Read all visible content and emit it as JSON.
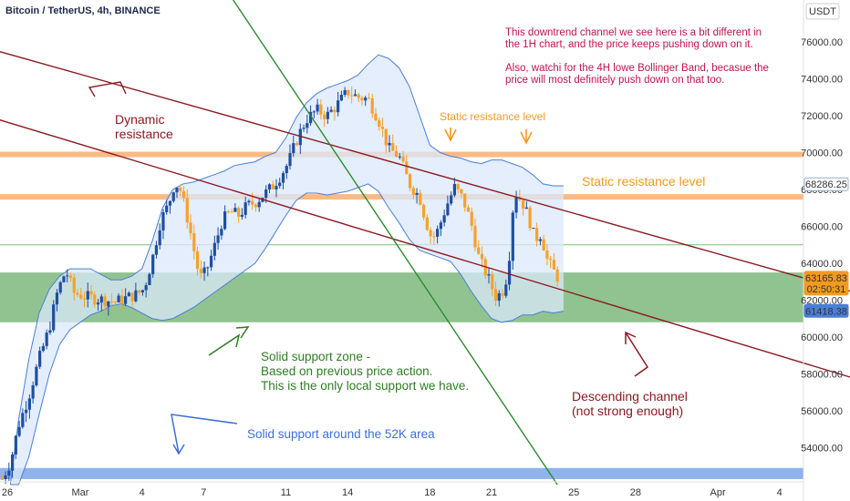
{
  "header": {
    "symbol_title": "Bitcoin / TetherUS, 4h, BINANCE",
    "currency": "USDT"
  },
  "colors": {
    "up": "#1e4fa0",
    "down": "#f7a12a",
    "support_zone": "#7cb87c",
    "support_52k": "#7aa6ea",
    "static_resistance": "#f7b27a",
    "bollinger": "#4a7fd8",
    "bollinger_fill": "#dbe8fb",
    "dark_red": "#8b1a22",
    "green_line": "#2e8b2e",
    "annotation_red": "#c0144c",
    "annotation_orange": "#f39a1f",
    "annotation_green": "#2e7d23",
    "annotation_blue": "#3d6fd8",
    "badge_orange": "#f39a1f",
    "badge_blue": "#4a7fd8"
  },
  "chart_data": {
    "type": "candlestick",
    "title": "Bitcoin / TetherUS, 4h, BINANCE",
    "y_axis": {
      "ticks": [
        "76000.00",
        "74000.00",
        "72000.00",
        "70000.00",
        "68000.00",
        "66000.00",
        "64000.00",
        "62000.00",
        "60000.00",
        "58000.00",
        "56000.00",
        "54000.00"
      ],
      "tick_values": [
        76000,
        74000,
        72000,
        70000,
        68000,
        66000,
        64000,
        62000,
        60000,
        58000,
        56000,
        54000
      ],
      "range": [
        52000,
        77000
      ],
      "unit": "USDT"
    },
    "x_axis": {
      "ticks": [
        "26",
        "Mar",
        "4",
        "7",
        "11",
        "14",
        "18",
        "21",
        "25",
        "28",
        "Apr",
        "4"
      ],
      "tick_days": [
        -4,
        0,
        3,
        6,
        10,
        13,
        17,
        20,
        24,
        27,
        31,
        34
      ]
    },
    "price_labels": [
      {
        "value": 68286.25,
        "text": "68286.25",
        "style": "outline"
      },
      {
        "value": 63165.83,
        "text": "63165.83",
        "sub": "02:50:31",
        "style": "orange"
      },
      {
        "value": 61418.38,
        "text": "61418.38",
        "style": "blue"
      }
    ],
    "levels": {
      "static_resistance": [
        69900,
        67600
      ],
      "support_zone": [
        60800,
        63500
      ],
      "support_52k": [
        52300,
        52900
      ],
      "thin_line": 65000
    },
    "trendlines": [
      {
        "name": "dynamic_resistance",
        "from": {
          "day": -4,
          "price": 75500
        },
        "to": {
          "day": 39,
          "price": 62000
        }
      },
      {
        "name": "channel_lower",
        "from": {
          "day": -4,
          "price": 71800
        },
        "to": {
          "day": 39,
          "price": 57300
        }
      },
      {
        "name": "steep_green",
        "from": {
          "day": 4.6,
          "price": 83000
        },
        "to": {
          "day": 23.2,
          "price": 52000
        }
      }
    ],
    "bollinger": {
      "upper": [
        [
          -3.4,
          52000
        ],
        [
          -3,
          55500
        ],
        [
          -2.5,
          58800
        ],
        [
          -2,
          61300
        ],
        [
          -1.5,
          62600
        ],
        [
          -1,
          63300
        ],
        [
          -0.5,
          63700
        ],
        [
          0,
          63700
        ],
        [
          0.5,
          63700
        ],
        [
          1,
          63400
        ],
        [
          1.5,
          63100
        ],
        [
          2,
          63100
        ],
        [
          2.5,
          63300
        ],
        [
          3,
          63700
        ],
        [
          3.5,
          65200
        ],
        [
          4,
          67000
        ],
        [
          4.5,
          68000
        ],
        [
          5,
          68300
        ],
        [
          5.5,
          68400
        ],
        [
          6,
          68600
        ],
        [
          6.5,
          68800
        ],
        [
          7,
          69000
        ],
        [
          7.5,
          69300
        ],
        [
          8,
          69400
        ],
        [
          8.5,
          69500
        ],
        [
          9,
          69800
        ],
        [
          9.5,
          70000
        ],
        [
          10,
          70800
        ],
        [
          10.5,
          71900
        ],
        [
          11,
          72700
        ],
        [
          11.5,
          73200
        ],
        [
          12,
          73500
        ],
        [
          12.5,
          73700
        ],
        [
          13,
          73900
        ],
        [
          13.5,
          74200
        ],
        [
          14,
          74800
        ],
        [
          14.5,
          75300
        ],
        [
          15,
          75100
        ],
        [
          15.5,
          74600
        ],
        [
          16,
          73600
        ],
        [
          16.5,
          72000
        ],
        [
          17,
          70400
        ],
        [
          17.5,
          70000
        ],
        [
          18,
          69800
        ],
        [
          18.5,
          69700
        ],
        [
          19,
          69500
        ],
        [
          19.5,
          69400
        ],
        [
          20,
          69600
        ],
        [
          20.5,
          69600
        ],
        [
          21,
          69400
        ],
        [
          21.5,
          69200
        ],
        [
          22,
          68800
        ],
        [
          22.5,
          68300
        ],
        [
          23,
          68200
        ],
        [
          23.5,
          68200
        ]
      ],
      "lower": [
        [
          -3.4,
          52000
        ],
        [
          -3,
          52000
        ],
        [
          -2.5,
          53500
        ],
        [
          -2,
          55800
        ],
        [
          -1.5,
          58000
        ],
        [
          -1,
          59600
        ],
        [
          -0.5,
          60400
        ],
        [
          0,
          60800
        ],
        [
          0.5,
          61200
        ],
        [
          1,
          61400
        ],
        [
          1.5,
          61700
        ],
        [
          2,
          61800
        ],
        [
          2.5,
          61600
        ],
        [
          3,
          61300
        ],
        [
          3.5,
          61000
        ],
        [
          4,
          60900
        ],
        [
          4.5,
          61000
        ],
        [
          5,
          61300
        ],
        [
          5.5,
          61600
        ],
        [
          6,
          62000
        ],
        [
          6.5,
          62400
        ],
        [
          7,
          62800
        ],
        [
          7.5,
          63200
        ],
        [
          8,
          63600
        ],
        [
          8.5,
          64000
        ],
        [
          9,
          64800
        ],
        [
          9.5,
          65700
        ],
        [
          10,
          66600
        ],
        [
          10.5,
          67400
        ],
        [
          11,
          67800
        ],
        [
          11.5,
          67800
        ],
        [
          12,
          67700
        ],
        [
          12.5,
          67800
        ],
        [
          13,
          67900
        ],
        [
          13.5,
          68100
        ],
        [
          14,
          68300
        ],
        [
          14.5,
          67900
        ],
        [
          15,
          67000
        ],
        [
          15.5,
          66200
        ],
        [
          16,
          65300
        ],
        [
          16.5,
          64700
        ],
        [
          17,
          64500
        ],
        [
          17.5,
          64300
        ],
        [
          18,
          64100
        ],
        [
          18.5,
          63400
        ],
        [
          19,
          62500
        ],
        [
          19.5,
          61700
        ],
        [
          20,
          61000
        ],
        [
          20.5,
          60800
        ],
        [
          21,
          60900
        ],
        [
          21.5,
          61200
        ],
        [
          22,
          61200
        ],
        [
          22.5,
          61400
        ],
        [
          23,
          61300
        ],
        [
          23.5,
          61400
        ]
      ]
    },
    "candles_anchor_path": [
      [
        -3.8,
        52300
      ],
      [
        -3.4,
        53200
      ],
      [
        -3,
        55200
      ],
      [
        -2.5,
        56800
      ],
      [
        -2,
        58800
      ],
      [
        -1.5,
        60500
      ],
      [
        -1.1,
        62500
      ],
      [
        -0.7,
        63600
      ],
      [
        -0.3,
        62400
      ],
      [
        0.2,
        62200
      ],
      [
        0.7,
        62100
      ],
      [
        1.2,
        62000
      ],
      [
        1.7,
        61900
      ],
      [
        2.2,
        62100
      ],
      [
        2.7,
        62300
      ],
      [
        3.1,
        62600
      ],
      [
        3.5,
        64200
      ],
      [
        3.9,
        66300
      ],
      [
        4.3,
        67200
      ],
      [
        4.6,
        68400
      ],
      [
        4.9,
        67900
      ],
      [
        5.3,
        66000
      ],
      [
        5.6,
        64300
      ],
      [
        5.8,
        63200
      ],
      [
        6.1,
        63500
      ],
      [
        6.5,
        64800
      ],
      [
        6.9,
        66300
      ],
      [
        7.3,
        66800
      ],
      [
        7.7,
        66600
      ],
      [
        8.1,
        67100
      ],
      [
        8.5,
        67300
      ],
      [
        8.9,
        67700
      ],
      [
        9.3,
        68100
      ],
      [
        9.7,
        68700
      ],
      [
        10.1,
        69400
      ],
      [
        10.6,
        70900
      ],
      [
        11,
        71800
      ],
      [
        11.5,
        72300
      ],
      [
        12,
        72000
      ],
      [
        12.5,
        72600
      ],
      [
        13,
        73300
      ],
      [
        13.5,
        73000
      ],
      [
        14,
        72900
      ],
      [
        14.5,
        71800
      ],
      [
        15,
        70200
      ],
      [
        15.5,
        69800
      ],
      [
        16,
        68300
      ],
      [
        16.5,
        67600
      ],
      [
        16.8,
        66300
      ],
      [
        17.1,
        65300
      ],
      [
        17.4,
        65800
      ],
      [
        17.8,
        67100
      ],
      [
        18.2,
        68100
      ],
      [
        18.6,
        67500
      ],
      [
        19,
        66200
      ],
      [
        19.4,
        64200
      ],
      [
        19.8,
        63300
      ],
      [
        20.2,
        62200
      ],
      [
        20.5,
        62400
      ],
      [
        20.8,
        63500
      ],
      [
        21.1,
        67900
      ],
      [
        21.5,
        67300
      ],
      [
        21.8,
        66500
      ],
      [
        22.1,
        65300
      ],
      [
        22.4,
        65600
      ],
      [
        22.7,
        64200
      ],
      [
        23,
        63600
      ],
      [
        23.3,
        63100
      ]
    ],
    "annotations": {
      "dynamic_resistance": [
        "Dynamic",
        "resistance"
      ],
      "static_resistance_small": "Static resistance level",
      "static_resistance_large": "Static resistance level",
      "solid_support_zone": [
        "Solid support zone -",
        "Based on previous price action.",
        "This is the only local support we have."
      ],
      "solid_support_52k": "Solid support around the 52K area",
      "descending_channel": [
        "Descending channel",
        "(not strong enough)"
      ],
      "top_note": [
        "This downtrend channel we see here is a bit different in",
        "the 1H chart, and the price keeps pushing down on it.",
        "",
        "Also, watchi for the 4H lowe Bollinger Band, becasue the",
        "price will most definitely push down on that too."
      ]
    }
  }
}
